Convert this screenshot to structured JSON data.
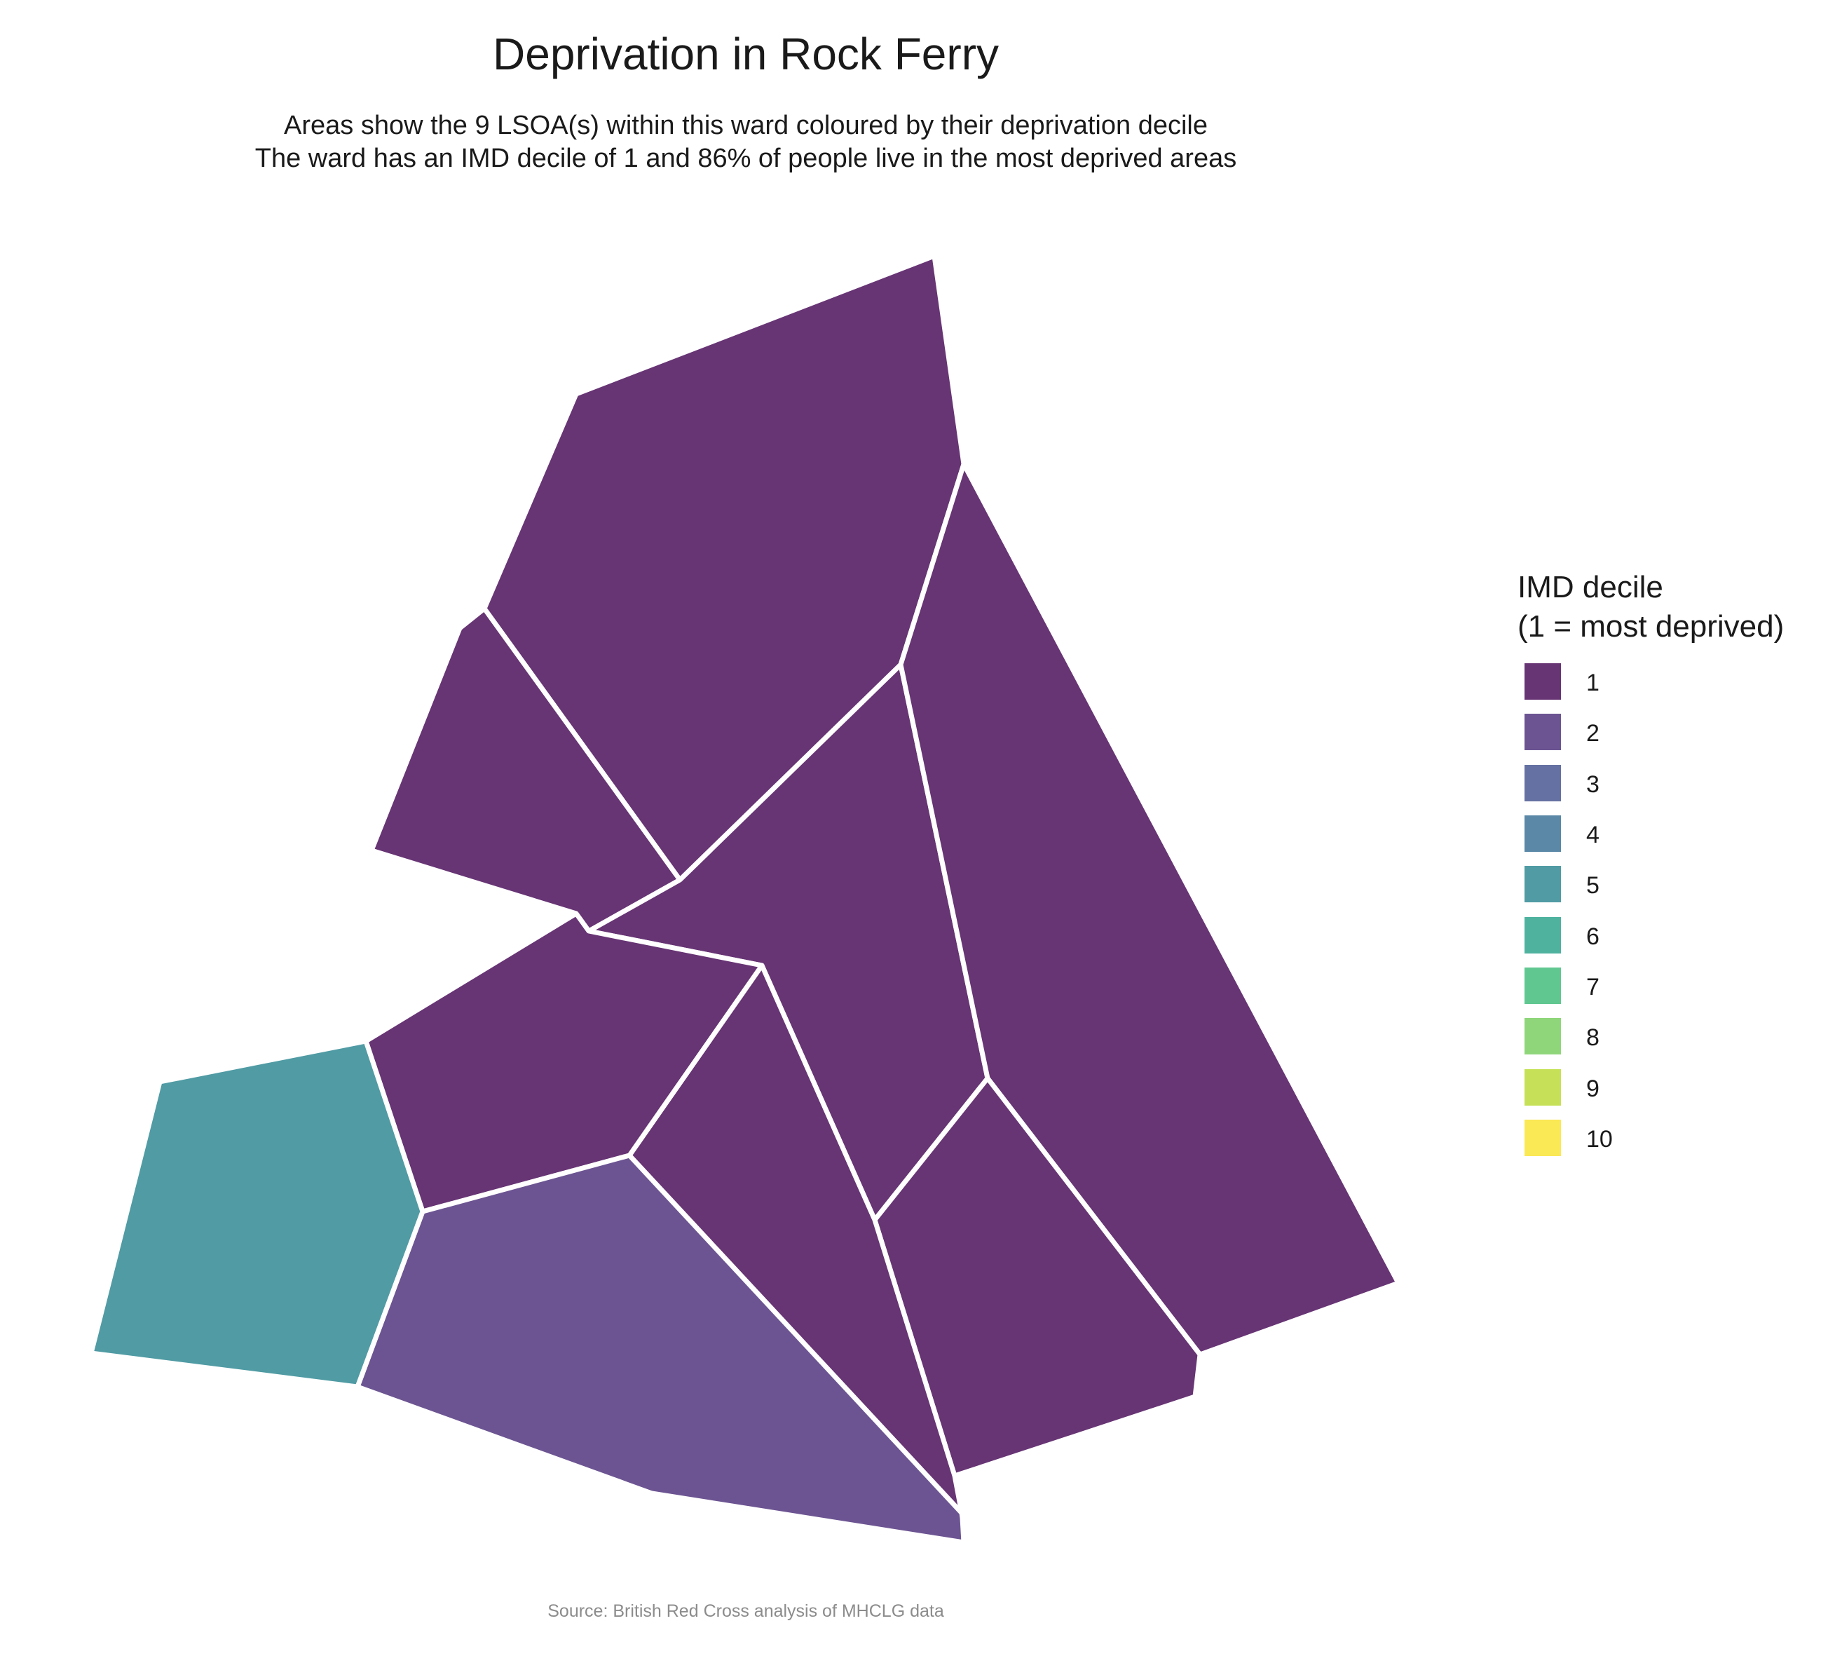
{
  "title": "Deprivation in Rock Ferry",
  "subtitle_line1": "Areas show the 9 LSOA(s) within this ward coloured by their deprivation decile",
  "subtitle_line2": "The ward has an IMD decile of 1 and 86% of people live in the most deprived areas",
  "caption": "Source: British Red Cross analysis of MHCLG data",
  "legend": {
    "title_line1": "IMD decile",
    "title_line2": "(1 = most deprived)",
    "items": [
      {
        "label": "1",
        "color": "#673474"
      },
      {
        "label": "2",
        "color": "#6c5492"
      },
      {
        "label": "3",
        "color": "#6571a2"
      },
      {
        "label": "4",
        "color": "#5a88a6"
      },
      {
        "label": "5",
        "color": "#509ba4"
      },
      {
        "label": "6",
        "color": "#4fb29f"
      },
      {
        "label": "7",
        "color": "#60c790"
      },
      {
        "label": "8",
        "color": "#8fd67a"
      },
      {
        "label": "9",
        "color": "#c6e157"
      },
      {
        "label": "10",
        "color": "#fae855"
      }
    ]
  },
  "chart_data": {
    "type": "choropleth",
    "areas": [
      {
        "decile": 1
      },
      {
        "decile": 1
      },
      {
        "decile": 1
      },
      {
        "decile": 1
      },
      {
        "decile": 1
      },
      {
        "decile": 1
      },
      {
        "decile": 1
      },
      {
        "decile": 2
      },
      {
        "decile": 5
      }
    ]
  }
}
